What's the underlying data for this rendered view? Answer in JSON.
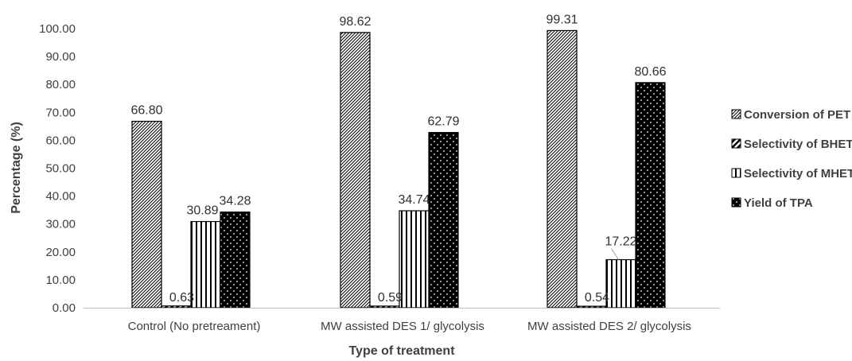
{
  "chart_data": {
    "type": "bar",
    "title": "",
    "xlabel": "Type of treatment",
    "ylabel": "Percentage (%)",
    "ylim": [
      0,
      100
    ],
    "ytick_step": 10,
    "ytick_labels": [
      "0.00",
      "10.00",
      "20.00",
      "30.00",
      "40.00",
      "50.00",
      "60.00",
      "70.00",
      "80.00",
      "90.00",
      "100.00"
    ],
    "categories": [
      "Control (No pretreament)",
      "MW assisted DES 1/ glycolysis",
      "MW assisted DES 2/ glycolysis"
    ],
    "series": [
      {
        "name": "Conversion of PET",
        "values": [
          66.8,
          98.62,
          99.31
        ],
        "labels": [
          "66.80",
          "98.62",
          "99.31"
        ],
        "pattern": "diagonal-hatch"
      },
      {
        "name": "Selectivity of BHET",
        "values": [
          0.63,
          0.59,
          0.54
        ],
        "labels": [
          "0.63",
          "0.59",
          "0.54"
        ],
        "pattern": "wide-diagonal"
      },
      {
        "name": "Selectivity of MHET",
        "values": [
          30.89,
          34.74,
          17.22
        ],
        "labels": [
          "30.89",
          "34.74",
          "17.22"
        ],
        "pattern": "vertical-stripes"
      },
      {
        "name": "Yield of TPA",
        "values": [
          34.28,
          62.79,
          80.66
        ],
        "labels": [
          "34.28",
          "62.79",
          "80.66"
        ],
        "pattern": "dotted-black"
      }
    ],
    "legend_position": "right",
    "grid": false,
    "colors": {
      "bar_stroke": "#000000",
      "fill": "#ffffff",
      "dark_fill": "#000000",
      "text": "#404040"
    }
  }
}
